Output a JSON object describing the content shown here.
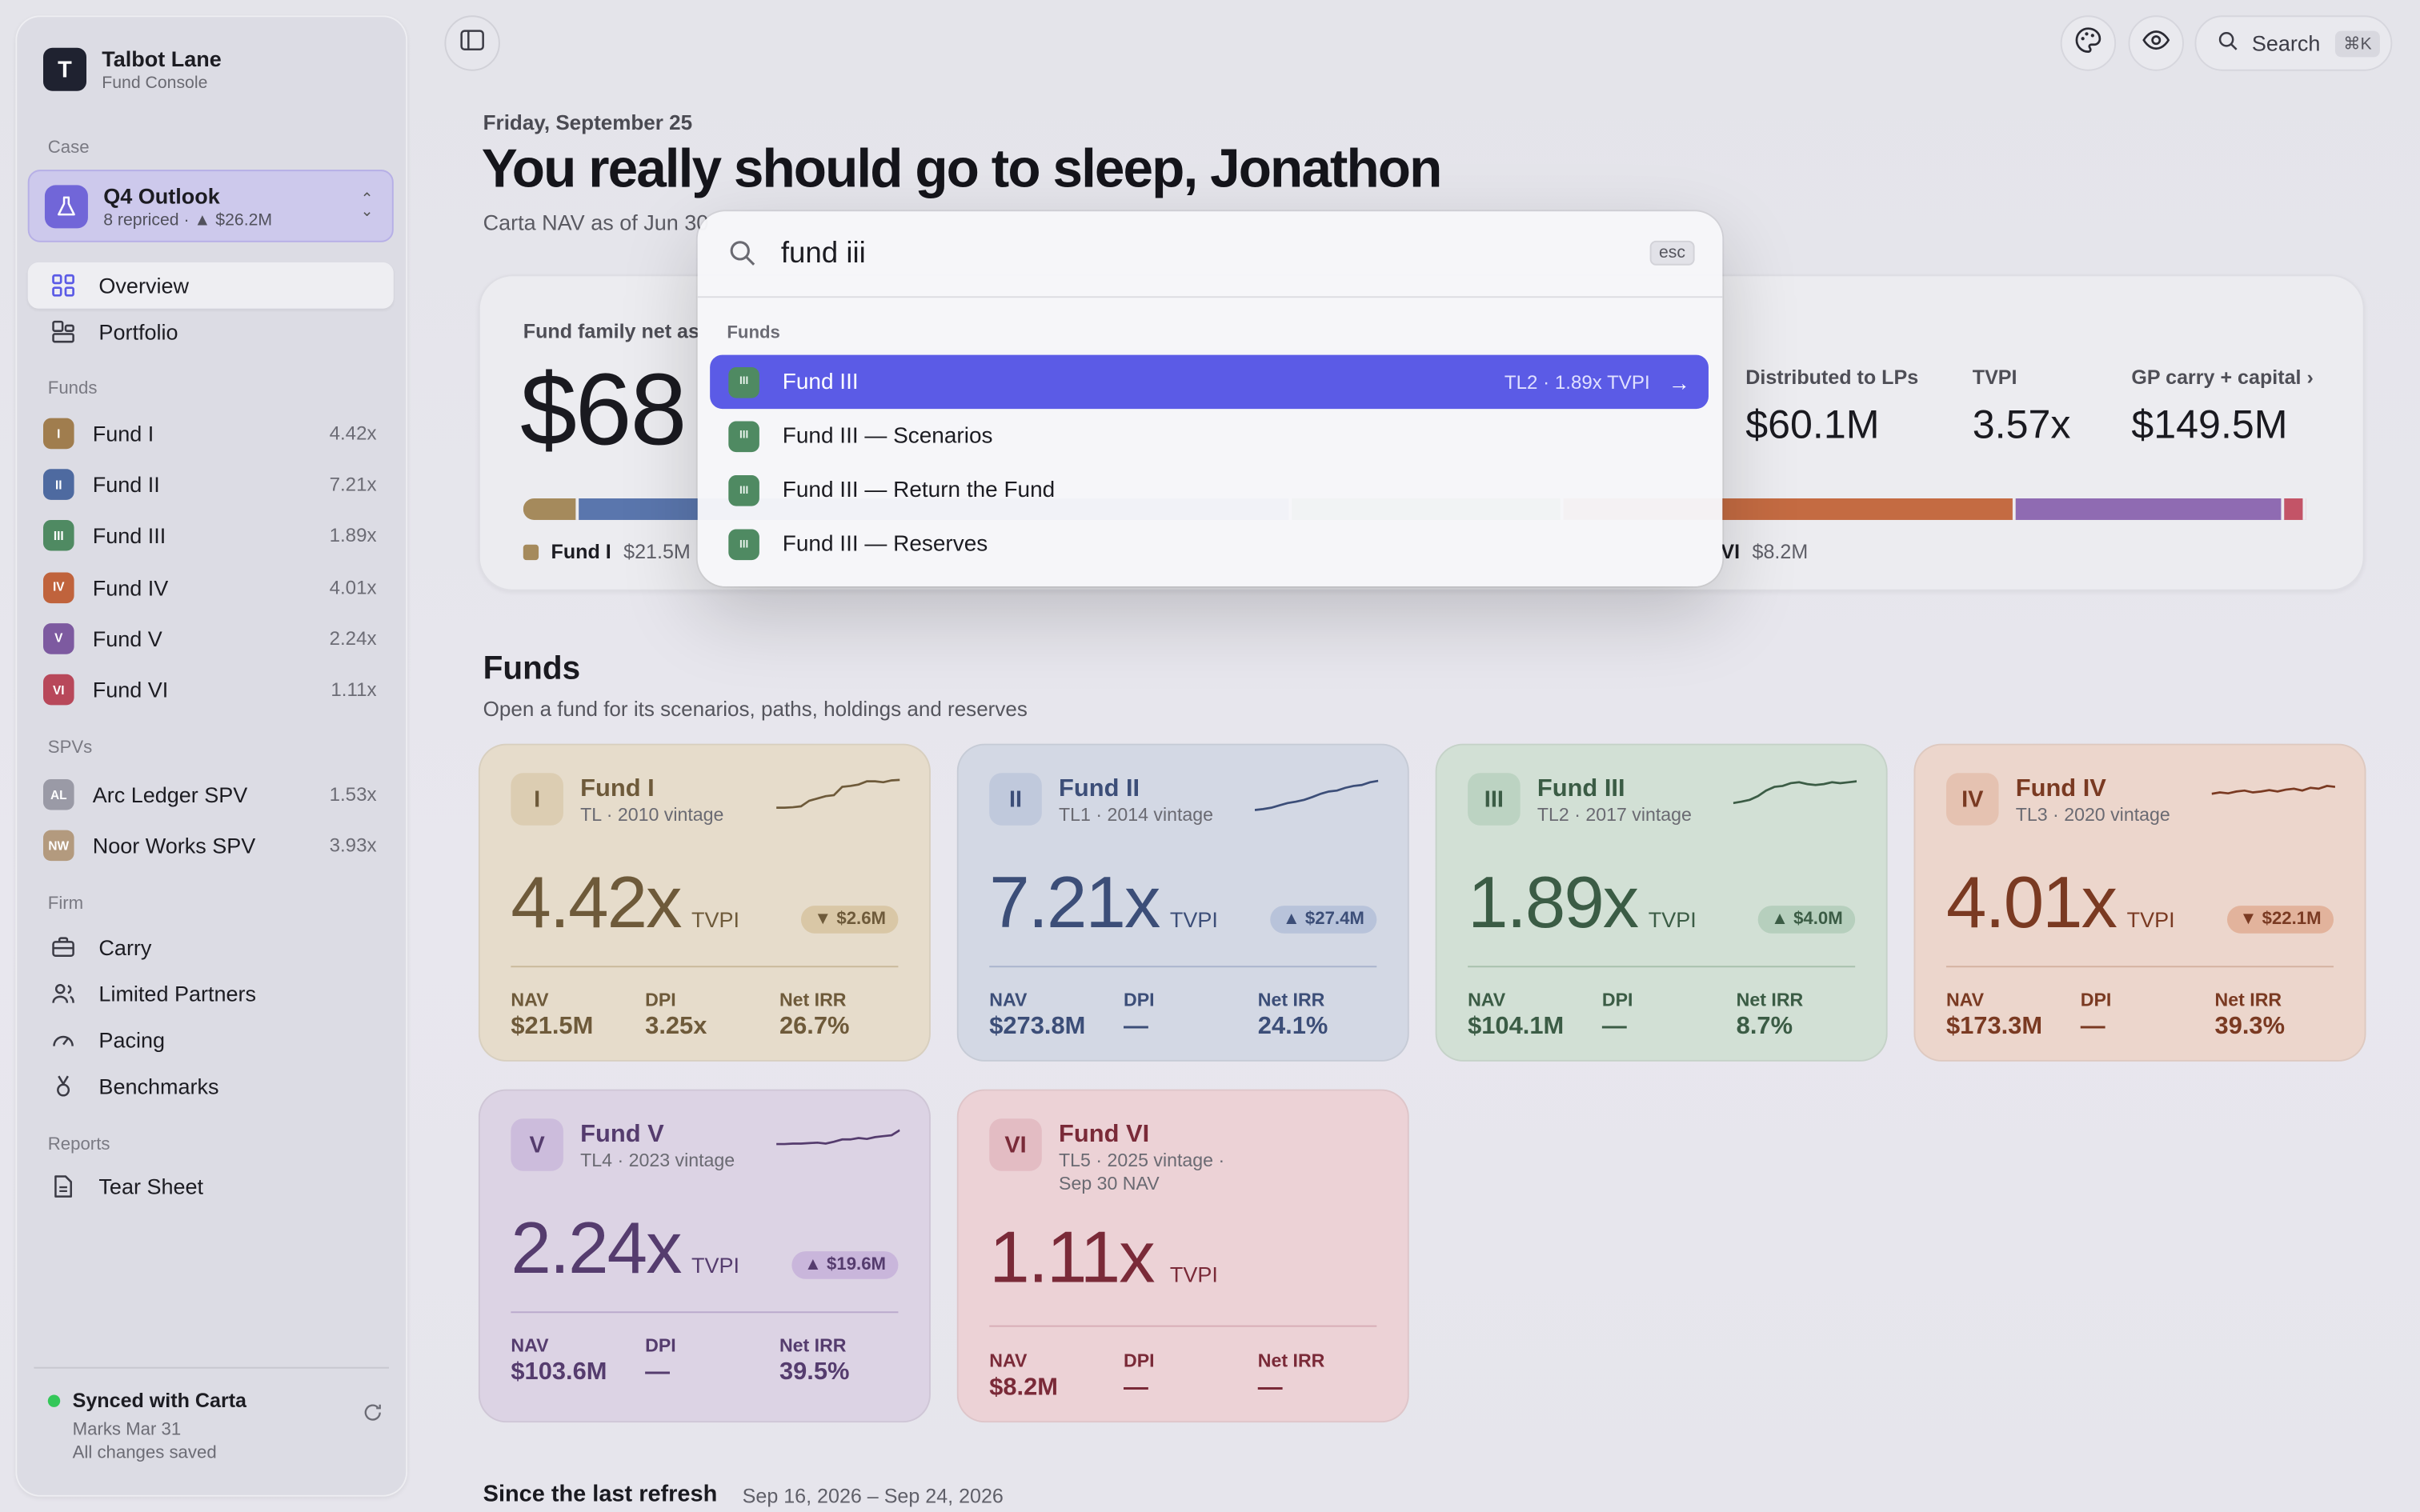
{
  "brand": {
    "initial": "T",
    "name": "Talbot Lane",
    "subtitle": "Fund Console"
  },
  "sidebar": {
    "case_label": "Case",
    "case": {
      "title": "Q4 Outlook",
      "subtitle": "8 repriced · ▲ $26.2M"
    },
    "nav": [
      {
        "label": "Overview",
        "icon": "grid-icon",
        "active": true
      },
      {
        "label": "Portfolio",
        "icon": "portfolio-icon",
        "active": false
      }
    ],
    "funds_label": "Funds",
    "funds": [
      {
        "badge": "I",
        "label": "Fund I",
        "value": "4.42x",
        "color": "#a07d4e"
      },
      {
        "badge": "II",
        "label": "Fund II",
        "value": "7.21x",
        "color": "#4e6aa0"
      },
      {
        "badge": "III",
        "label": "Fund III",
        "value": "1.89x",
        "color": "#4f8a62"
      },
      {
        "badge": "IV",
        "label": "Fund IV",
        "value": "4.01x",
        "color": "#c0633c"
      },
      {
        "badge": "V",
        "label": "Fund V",
        "value": "2.24x",
        "color": "#7d5aa0"
      },
      {
        "badge": "VI",
        "label": "Fund VI",
        "value": "1.11x",
        "color": "#b8485a"
      }
    ],
    "spvs_label": "SPVs",
    "spvs": [
      {
        "badge": "AL",
        "label": "Arc Ledger SPV",
        "value": "1.53x",
        "color": "#9a9aa6"
      },
      {
        "badge": "NW",
        "label": "Noor Works SPV",
        "value": "3.93x",
        "color": "#b39a7e"
      }
    ],
    "firm_label": "Firm",
    "firm": [
      {
        "label": "Carry",
        "icon": "briefcase-icon"
      },
      {
        "label": "Limited Partners",
        "icon": "people-icon"
      },
      {
        "label": "Pacing",
        "icon": "gauge-icon"
      },
      {
        "label": "Benchmarks",
        "icon": "medal-icon"
      }
    ],
    "reports_label": "Reports",
    "reports": [
      {
        "label": "Tear Sheet",
        "icon": "document-icon"
      }
    ],
    "sync": {
      "title": "Synced with Carta",
      "marks": "Marks Mar 31",
      "saved": "All changes saved"
    }
  },
  "topbar": {
    "search_label": "Search",
    "search_shortcut": "⌘K"
  },
  "header": {
    "date": "Friday, September 25",
    "greeting": "You really should go to sleep, Jonathon",
    "nav_as_of": "Carta NAV as of Jun 30"
  },
  "family": {
    "label": "Fund family net as",
    "value": "$68",
    "stats": [
      {
        "label": "Distributed to LPs",
        "value": "$60.1M"
      },
      {
        "label": "TVPI",
        "value": "3.57x"
      },
      {
        "label": "GP carry + capital",
        "value": "$149.5M"
      }
    ],
    "bar_segments": [
      {
        "color": "#a58a5c",
        "share": 0.031
      },
      {
        "color": "#5a76ad",
        "share": 0.396
      },
      {
        "color": "#5a9070",
        "share": 0.151
      },
      {
        "color": "#c46b42",
        "share": 0.251
      },
      {
        "color": "#8f6bb2",
        "share": 0.15
      },
      {
        "color": "#c35467",
        "share": 0.012
      }
    ],
    "legend_left": {
      "name": "Fund I",
      "value": "$21.5M",
      "color": "#a58a5c"
    },
    "legend_right": {
      "name": "VI",
      "value": "$8.2M"
    }
  },
  "funds_section": {
    "title": "Funds",
    "subtitle": "Open a fund for its scenarios, paths, holdings and reserves"
  },
  "fund_cards": [
    {
      "badge": "I",
      "name": "Fund I",
      "vintage": "TL · 2010 vintage",
      "tvpi": "4.42x",
      "tvpi_label": "TVPI",
      "delta": "▼ $2.6M",
      "nav_label": "NAV",
      "nav": "$21.5M",
      "dpi_label": "DPI",
      "dpi": "3.25x",
      "irr_label": "Net IRR",
      "irr": "26.7%",
      "bg": "#e6dccb",
      "accent": "#6e5a3a",
      "badge_bg": "#dccdb2",
      "delta_bg": "#d9c7a6",
      "line": "#c9b89a",
      "spark": [
        0.25,
        0.25,
        0.26,
        0.28,
        0.4,
        0.45,
        0.5,
        0.52,
        0.7,
        0.72,
        0.75,
        0.82,
        0.82,
        0.8,
        0.84,
        0.85
      ]
    },
    {
      "badge": "II",
      "name": "Fund II",
      "vintage": "TL1 · 2014 vintage",
      "tvpi": "7.21x",
      "tvpi_label": "TVPI",
      "delta": "▲ $27.4M",
      "nav_label": "NAV",
      "nav": "$273.8M",
      "dpi_label": "DPI",
      "dpi": "—",
      "irr_label": "Net IRR",
      "irr": "24.1%",
      "bg": "#d3d8e4",
      "accent": "#3c4e78",
      "badge_bg": "#c0c9dc",
      "delta_bg": "#b8c3da",
      "line": "#a9b4cc",
      "spark": [
        0.2,
        0.22,
        0.25,
        0.3,
        0.35,
        0.38,
        0.42,
        0.48,
        0.55,
        0.6,
        0.62,
        0.68,
        0.72,
        0.74,
        0.8,
        0.83
      ]
    },
    {
      "badge": "III",
      "name": "Fund III",
      "vintage": "TL2 · 2017 vintage",
      "tvpi": "1.89x",
      "tvpi_label": "TVPI",
      "delta": "▲ $4.0M",
      "nav_label": "NAV",
      "nav": "$104.1M",
      "dpi_label": "DPI",
      "dpi": "—",
      "irr_label": "Net IRR",
      "irr": "8.7%",
      "bg": "#d2e0d5",
      "accent": "#3b5c45",
      "badge_bg": "#bcd3c2",
      "delta_bg": "#b6cfbd",
      "line": "#a7c0ad",
      "spark": [
        0.35,
        0.38,
        0.42,
        0.5,
        0.62,
        0.7,
        0.72,
        0.78,
        0.8,
        0.76,
        0.74,
        0.76,
        0.8,
        0.78,
        0.8,
        0.82
      ]
    },
    {
      "badge": "IV",
      "name": "Fund IV",
      "vintage": "TL3 · 2020 vintage",
      "tvpi": "4.01x",
      "tvpi_label": "TVPI",
      "delta": "▼ $22.1M",
      "nav_label": "NAV",
      "nav": "$173.3M",
      "dpi_label": "DPI",
      "dpi": "—",
      "irr_label": "Net IRR",
      "irr": "39.3%",
      "bg": "#ecd6cc",
      "accent": "#7a3a22",
      "badge_bg": "#e5c2b1",
      "delta_bg": "#e2b39c",
      "line": "#d4b1a0",
      "spark": [
        0.55,
        0.58,
        0.56,
        0.6,
        0.62,
        0.58,
        0.6,
        0.63,
        0.6,
        0.64,
        0.66,
        0.62,
        0.68,
        0.66,
        0.72,
        0.7
      ]
    },
    {
      "badge": "V",
      "name": "Fund V",
      "vintage": "TL4 · 2023 vintage",
      "tvpi": "2.24x",
      "tvpi_label": "TVPI",
      "delta": "▲ $19.6M",
      "nav_label": "NAV",
      "nav": "$103.6M",
      "dpi_label": "DPI",
      "dpi": "—",
      "irr_label": "Net IRR",
      "irr": "39.5%",
      "bg": "#dcd3e4",
      "accent": "#553c6e",
      "badge_bg": "#ccbcdc",
      "delta_bg": "#c9b6db",
      "line": "#baa9cc",
      "spark": [
        0.45,
        0.45,
        0.46,
        0.46,
        0.47,
        0.48,
        0.46,
        0.5,
        0.55,
        0.55,
        0.58,
        0.56,
        0.6,
        0.62,
        0.64,
        0.75
      ]
    },
    {
      "badge": "VI",
      "name": "Fund VI",
      "vintage": "TL5 · 2025 vintage · Sep 30 NAV",
      "tvpi": "1.11x",
      "tvpi_label": "TVPI",
      "delta": "",
      "nav_label": "NAV",
      "nav": "$8.2M",
      "dpi_label": "DPI",
      "dpi": "—",
      "irr_label": "Net IRR",
      "irr": "—",
      "bg": "#ecd2d6",
      "accent": "#7a2a38",
      "badge_bg": "#e3bcc3",
      "delta_bg": "#e3bcc3",
      "line": "#d7aeb6",
      "spark": []
    }
  ],
  "since": {
    "title": "Since the last refresh",
    "range": "Sep 16, 2026 – Sep 24, 2026"
  },
  "palette": {
    "query": "fund iii",
    "esc_label": "esc",
    "group_label": "Funds",
    "results": [
      {
        "badge": "III",
        "label": "Fund III",
        "meta": "TL2 · 1.89x TVPI",
        "selected": true
      },
      {
        "badge": "III",
        "label": "Fund III — Scenarios",
        "meta": "",
        "selected": false
      },
      {
        "badge": "III",
        "label": "Fund III — Return the Fund",
        "meta": "",
        "selected": false
      },
      {
        "badge": "III",
        "label": "Fund III — Reserves",
        "meta": "",
        "selected": false
      }
    ]
  }
}
